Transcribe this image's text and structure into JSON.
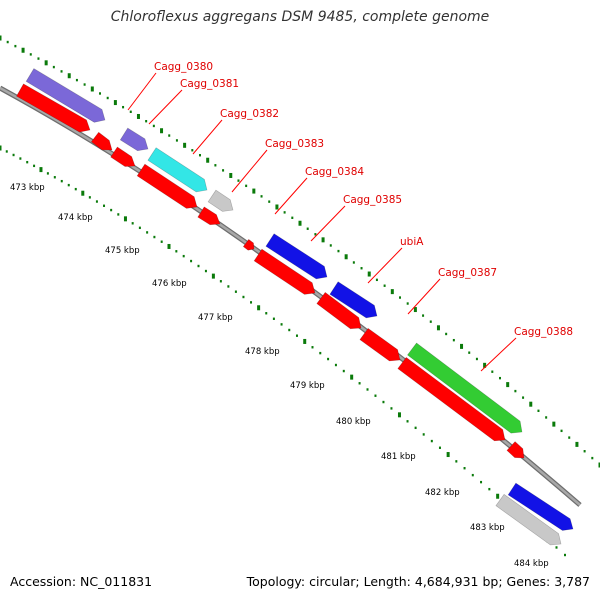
{
  "title": "Chloroflexus aggregans DSM 9485, complete genome",
  "footer": {
    "accession": "Accession: NC_011831",
    "summary": "Topology: circular; Length: 4,684,931 bp; Genes: 3,787"
  },
  "colors": {
    "backbone": "#8c8c8c",
    "tick_green": "#0a7a0a",
    "cds_red": "#ff0000",
    "label_red": "#e00000",
    "label_line": "#ff0000",
    "purple": "#7b68d8",
    "cyan": "#33e6e6",
    "gray": "#c8c8c8",
    "blue": "#1212e6",
    "green": "#33cc33"
  },
  "genes": [
    {
      "label": "Cagg_0380"
    },
    {
      "label": "Cagg_0381"
    },
    {
      "label": "Cagg_0382"
    },
    {
      "label": "Cagg_0383"
    },
    {
      "label": "Cagg_0384"
    },
    {
      "label": "Cagg_0385"
    },
    {
      "label": "ubiA"
    },
    {
      "label": "Cagg_0387"
    },
    {
      "label": "Cagg_0388"
    }
  ],
  "kbp_ticks": [
    {
      "label": "473 kbp"
    },
    {
      "label": "474 kbp"
    },
    {
      "label": "475 kbp"
    },
    {
      "label": "476 kbp"
    },
    {
      "label": "477 kbp"
    },
    {
      "label": "478 kbp"
    },
    {
      "label": "479 kbp"
    },
    {
      "label": "480 kbp"
    },
    {
      "label": "481 kbp"
    },
    {
      "label": "482 kbp"
    },
    {
      "label": "483 kbp"
    },
    {
      "label": "484 kbp"
    }
  ]
}
